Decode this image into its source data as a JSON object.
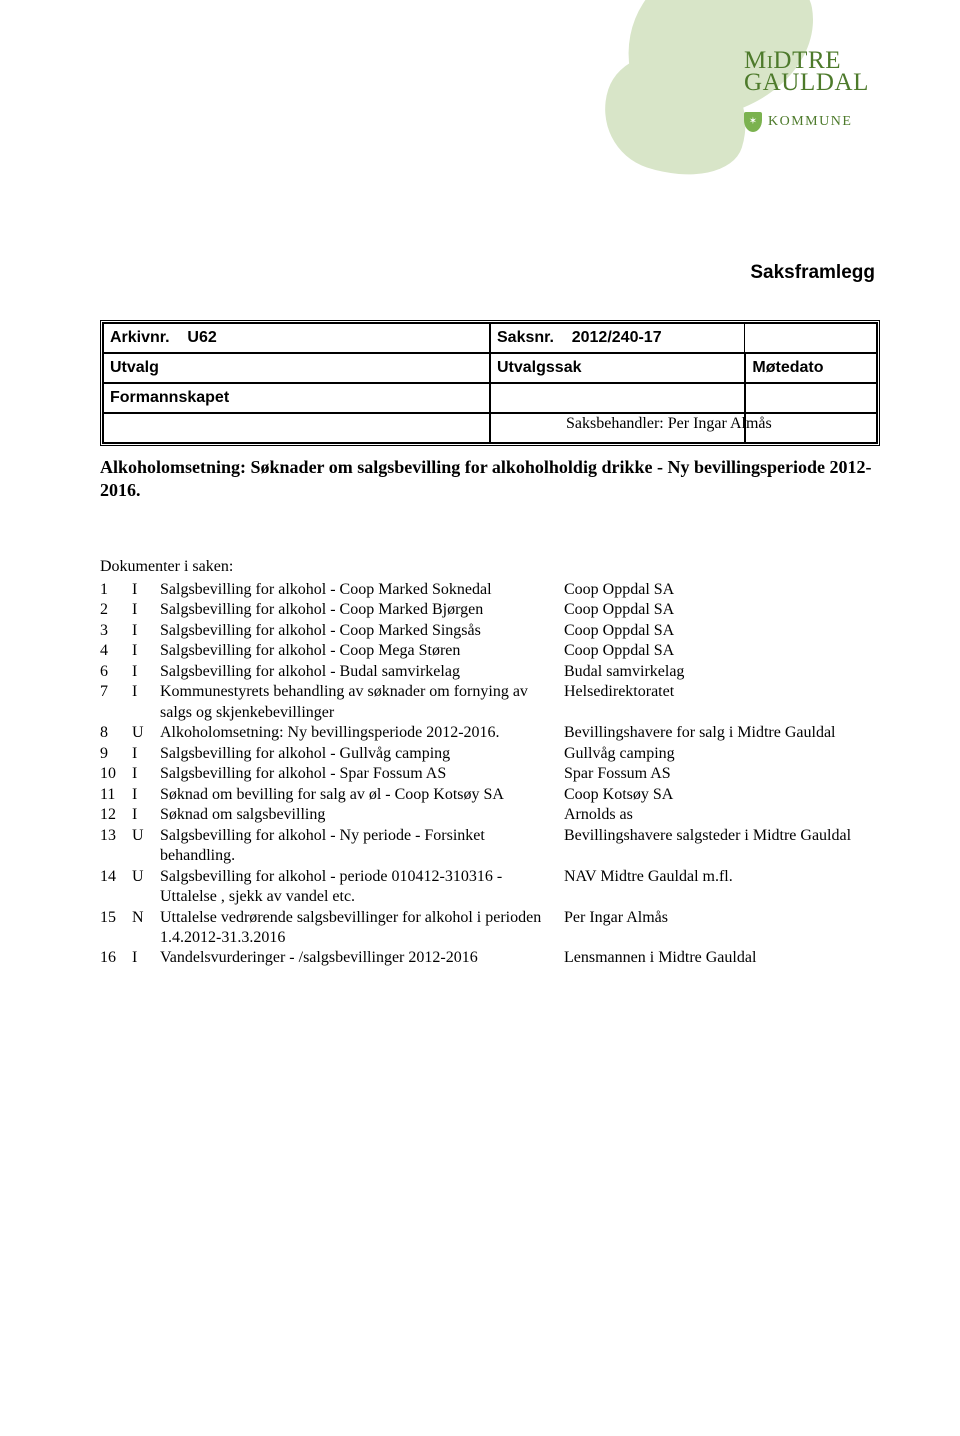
{
  "logo": {
    "line1": "MiDTRE",
    "line2": "GAULDAL",
    "kommune": "KOMMUNE",
    "shield_glyph": "✶",
    "brand_color": "#4d7a2b",
    "blob_color": "#d8e5c8"
  },
  "document": {
    "title": "Saksframlegg"
  },
  "meta": {
    "col_archive_label": "Arkivnr.",
    "col_archive_value": "U62",
    "col_case_label": "Saksnr.",
    "col_case_value": "2012/240-17",
    "col_utvalg": "Utvalg",
    "col_utvalgssak": "Utvalgssak",
    "col_motedato": "Møtedato",
    "row_utvalg_value": "Formannskapet"
  },
  "case": {
    "saksbehandler_label": "Saksbehandler:",
    "saksbehandler_name": "Per Ingar Almås",
    "title": "Alkoholomsetning: Søknader om salgsbevilling for alkoholholdig drikke  - Ny bevillingsperiode 2012-2016."
  },
  "docs": {
    "heading": "Dokumenter i saken:",
    "rows": [
      {
        "n": "1",
        "t": "I",
        "desc": "Salgsbevilling for alkohol - Coop Marked Soknedal",
        "party": "Coop Oppdal SA"
      },
      {
        "n": "2",
        "t": "I",
        "desc": "Salgsbevilling for alkohol - Coop Marked Bjørgen",
        "party": "Coop Oppdal SA"
      },
      {
        "n": "3",
        "t": "I",
        "desc": "Salgsbevilling for alkohol - Coop Marked Singsås",
        "party": "Coop Oppdal SA"
      },
      {
        "n": "4",
        "t": "I",
        "desc": "Salgsbevilling for alkohol - Coop Mega Støren",
        "party": "Coop Oppdal SA"
      },
      {
        "n": "6",
        "t": "I",
        "desc": "Salgsbevilling for alkohol - Budal samvirkelag",
        "party": "Budal samvirkelag"
      },
      {
        "n": "7",
        "t": "I",
        "desc": "Kommunestyrets behandling av søknader om fornying av salgs og skjenkebevillinger",
        "party": "Helsedirektoratet"
      },
      {
        "n": "8",
        "t": "U",
        "desc": "Alkoholomsetning: Ny bevillingsperiode 2012-2016.",
        "party": "Bevillingshavere for salg i Midtre Gauldal"
      },
      {
        "n": "9",
        "t": "I",
        "desc": "Salgsbevilling for alkohol - Gullvåg camping",
        "party": "Gullvåg camping"
      },
      {
        "n": "10",
        "t": "I",
        "desc": "Salgsbevilling for alkohol - Spar Fossum AS",
        "party": "Spar Fossum AS"
      },
      {
        "n": "11",
        "t": "I",
        "desc": "Søknad om bevilling for salg av øl - Coop Kotsøy SA",
        "party": "Coop Kotsøy SA"
      },
      {
        "n": "12",
        "t": "I",
        "desc": "Søknad om salgsbevilling",
        "party": "Arnolds as"
      },
      {
        "n": "13",
        "t": "U",
        "desc": "Salgsbevilling for alkohol - Ny periode - Forsinket behandling.",
        "party": "Bevillingshavere salgsteder i Midtre Gauldal"
      },
      {
        "n": "14",
        "t": "U",
        "desc": "Salgsbevilling for alkohol - periode 010412-310316 - Uttalelse , sjekk  av vandel etc.",
        "party": "NAV Midtre Gauldal m.fl."
      },
      {
        "n": "15",
        "t": "N",
        "desc": "Uttalelse vedrørende salgsbevillinger for alkohol i perioden 1.4.2012-31.3.2016",
        "party": "Per Ingar Almås"
      },
      {
        "n": "16",
        "t": "I",
        "desc": "Vandelsvurderinger - /salgsbevillinger 2012-2016",
        "party": "Lensmannen i Midtre Gauldal"
      }
    ]
  }
}
